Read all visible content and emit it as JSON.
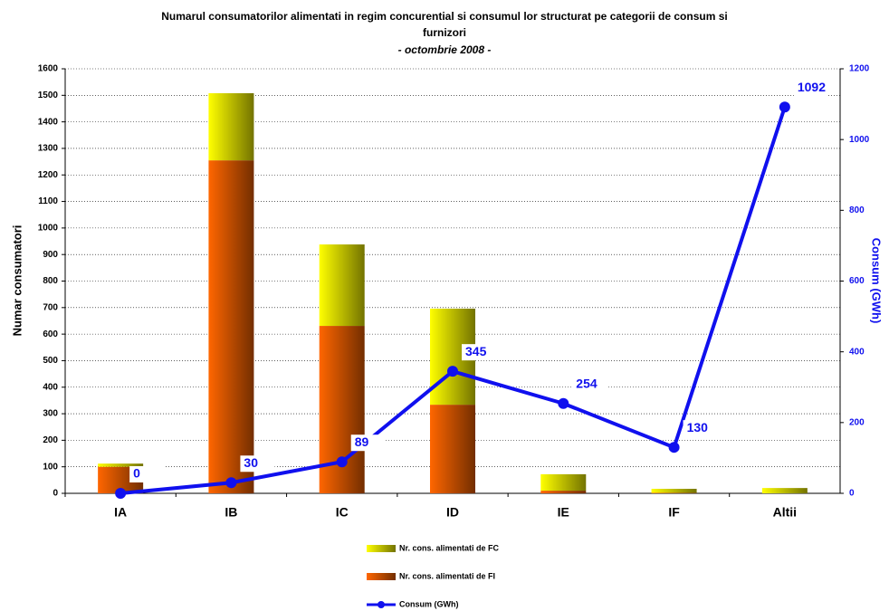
{
  "chart_data": {
    "type": "bar-line",
    "title": [
      "Numarul consumatorilor alimentati in regim concurential si consumul lor structurat pe categorii de consum si",
      "furnizori"
    ],
    "subtitle": "- octombrie 2008 -",
    "categories": [
      "IA",
      "IB",
      "IC",
      "ID",
      "IE",
      "IF",
      "Altii"
    ],
    "y_label": "Numar consumatori",
    "y2_label": "Consum (GWh)",
    "ylim": [
      0,
      1600
    ],
    "yticks": [
      0,
      100,
      200,
      300,
      400,
      500,
      600,
      700,
      800,
      900,
      1000,
      1100,
      1200,
      1300,
      1400,
      1500,
      1600
    ],
    "y2lim": [
      0,
      1200
    ],
    "y2ticks": [
      0,
      200,
      400,
      600,
      800,
      1000,
      1200
    ],
    "grid": true,
    "legend": "bottom",
    "series": [
      {
        "name": "Nr. cons. alimentati de FI",
        "type": "bar",
        "color": "#ff6600",
        "values": [
          100,
          1255,
          631,
          334,
          10,
          2,
          0
        ]
      },
      {
        "name": "Nr. cons. alimentati de FC",
        "type": "bar",
        "color": "#ffff00",
        "values": [
          12,
          253,
          307,
          362,
          62,
          15,
          20
        ]
      },
      {
        "name": "Consum (GWh)",
        "type": "line",
        "axis": "y2",
        "color": "#1010ee",
        "values": [
          0,
          30,
          89,
          345,
          254,
          130,
          1092
        ]
      }
    ]
  }
}
